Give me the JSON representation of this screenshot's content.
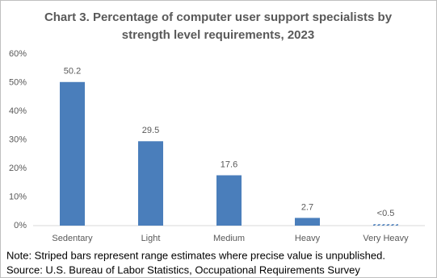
{
  "chart_data": {
    "type": "bar",
    "title": "Chart 3. Percentage of computer user support specialists by",
    "subtitle": "strength level requirements, 2023",
    "categories": [
      "Sedentary",
      "Light",
      "Medium",
      "Heavy",
      "Very Heavy"
    ],
    "values": [
      50.2,
      29.5,
      17.6,
      2.7,
      0.5
    ],
    "value_labels": [
      "50.2",
      "29.5",
      "17.6",
      "2.7",
      "<0.5"
    ],
    "striped": [
      false,
      false,
      false,
      false,
      true
    ],
    "color": "#4a7ebb",
    "ylim": [
      0,
      60
    ],
    "yticks": [
      {
        "value": 0,
        "label": "0%"
      },
      {
        "value": 10,
        "label": "10%"
      },
      {
        "value": 20,
        "label": "20%"
      },
      {
        "value": 30,
        "label": "30%"
      },
      {
        "value": 40,
        "label": "40%"
      },
      {
        "value": 50,
        "label": "50%"
      },
      {
        "value": 60,
        "label": "60%"
      }
    ],
    "grid": false,
    "note": "Note: Striped bars represent range estimates where precise value is unpublished.",
    "source": "Source: U.S. Bureau of Labor Statistics, Occupational Requirements Survey"
  }
}
